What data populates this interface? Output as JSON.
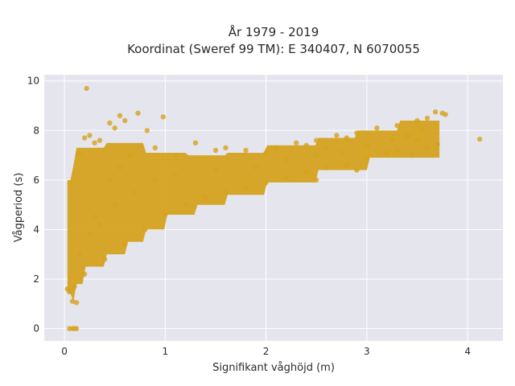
{
  "chart_data": {
    "type": "scatter",
    "title_lines": [
      "År 1979 - 2019",
      "Koordinat (Sweref 99 TM): E 340407, N 6070055"
    ],
    "xlabel": "Signifikant våghöjd (m)",
    "ylabel": "Vågperiod (s)",
    "xlim": [
      -0.2,
      4.35
    ],
    "ylim": [
      -0.5,
      10.25
    ],
    "xticks": [
      0,
      1,
      2,
      3,
      4
    ],
    "xtick_labels": [
      "0",
      "1",
      "2",
      "3",
      "4"
    ],
    "yticks": [
      0,
      2,
      4,
      6,
      8,
      10
    ],
    "ytick_labels": [
      "0",
      "2",
      "4",
      "6",
      "8",
      "10"
    ],
    "grid": true,
    "legend": "none",
    "point_color": "#d4a21e",
    "background_color": "#e5e5ee",
    "series": [
      {
        "points": [
          [
            0.22,
            9.7
          ],
          [
            4.12,
            7.65
          ],
          [
            0.55,
            8.6
          ],
          [
            0.6,
            8.4
          ],
          [
            0.73,
            8.7
          ],
          [
            0.98,
            8.55
          ],
          [
            0.5,
            8.1
          ],
          [
            0.45,
            8.3
          ],
          [
            0.82,
            8.0
          ],
          [
            1.3,
            7.5
          ],
          [
            1.6,
            7.3
          ],
          [
            1.8,
            7.2
          ],
          [
            2.1,
            7.3
          ],
          [
            2.3,
            7.5
          ],
          [
            2.5,
            7.6
          ],
          [
            2.7,
            7.8
          ],
          [
            2.9,
            7.9
          ],
          [
            3.1,
            8.1
          ],
          [
            3.3,
            8.2
          ],
          [
            3.5,
            8.4
          ],
          [
            3.6,
            8.5
          ],
          [
            3.68,
            8.75
          ],
          [
            3.75,
            8.7
          ],
          [
            3.78,
            8.65
          ],
          [
            3.5,
            7.6
          ],
          [
            3.7,
            7.45
          ],
          [
            3.6,
            7.3
          ],
          [
            3.2,
            7.1
          ],
          [
            3.0,
            6.9
          ],
          [
            2.8,
            6.6
          ],
          [
            2.6,
            6.5
          ],
          [
            2.4,
            6.3
          ],
          [
            2.2,
            6.1
          ],
          [
            2.0,
            5.9
          ],
          [
            1.8,
            5.7
          ],
          [
            1.6,
            5.5
          ],
          [
            1.4,
            5.3
          ],
          [
            1.2,
            5.0
          ],
          [
            1.0,
            4.6
          ],
          [
            0.8,
            4.0
          ],
          [
            0.6,
            3.4
          ],
          [
            0.4,
            2.8
          ],
          [
            0.2,
            2.2
          ],
          [
            0.1,
            1.7
          ],
          [
            0.05,
            1.5
          ],
          [
            0.08,
            1.1
          ],
          [
            0.12,
            1.05
          ],
          [
            0.03,
            1.6
          ],
          [
            0.05,
            0.0
          ],
          [
            0.08,
            0.0
          ],
          [
            0.1,
            0.0
          ],
          [
            0.12,
            0.0
          ],
          [
            0.2,
            7.7
          ],
          [
            0.3,
            7.5
          ],
          [
            0.15,
            7.1
          ],
          [
            0.25,
            7.8
          ],
          [
            0.35,
            7.6
          ],
          [
            0.9,
            7.3
          ],
          [
            1.1,
            7.0
          ],
          [
            1.5,
            7.2
          ],
          [
            2.0,
            7.1
          ],
          [
            2.4,
            7.4
          ],
          [
            2.6,
            7.3
          ],
          [
            2.8,
            7.7
          ],
          [
            0.3,
            4.5
          ],
          [
            0.5,
            5.0
          ],
          [
            0.7,
            5.5
          ],
          [
            0.9,
            6.0
          ],
          [
            1.1,
            6.2
          ],
          [
            1.5,
            6.4
          ],
          [
            0.15,
            3.0
          ],
          [
            0.25,
            3.8
          ],
          [
            0.35,
            4.2
          ],
          [
            0.45,
            6.0
          ],
          [
            0.55,
            6.5
          ],
          [
            0.65,
            7.0
          ],
          [
            1.9,
            6.5
          ],
          [
            2.2,
            6.8
          ],
          [
            2.5,
            7.0
          ],
          [
            2.75,
            7.1
          ],
          [
            3.0,
            7.4
          ],
          [
            3.25,
            7.6
          ],
          [
            3.4,
            7.8
          ],
          [
            3.55,
            8.0
          ],
          [
            3.3,
            7.2
          ],
          [
            3.45,
            7.0
          ],
          [
            2.9,
            6.4
          ],
          [
            2.5,
            6.0
          ]
        ]
      }
    ]
  }
}
